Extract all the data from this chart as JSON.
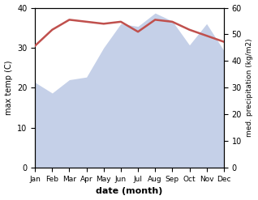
{
  "months": [
    "Jan",
    "Feb",
    "Mar",
    "Apr",
    "May",
    "Jun",
    "Jul",
    "Aug",
    "Sep",
    "Oct",
    "Nov",
    "Dec"
  ],
  "month_x": [
    1,
    2,
    3,
    4,
    5,
    6,
    7,
    8,
    9,
    10,
    11,
    12
  ],
  "temperature": [
    30.5,
    34.5,
    37.0,
    36.5,
    36.0,
    36.5,
    34.0,
    37.0,
    36.5,
    34.5,
    33.0,
    31.5
  ],
  "precipitation": [
    32.0,
    28.0,
    33.0,
    34.0,
    45.0,
    54.0,
    53.0,
    58.0,
    55.0,
    46.0,
    54.0,
    44.0
  ],
  "temp_color": "#c0504d",
  "precip_fill_color": "#c5d0e8",
  "temp_ylim": [
    0,
    40
  ],
  "precip_ylim": [
    0,
    60
  ],
  "xlabel": "date (month)",
  "ylabel_left": "max temp (C)",
  "ylabel_right": "med. precipitation (kg/m2)",
  "temp_linewidth": 1.8,
  "background_color": "#ffffff"
}
